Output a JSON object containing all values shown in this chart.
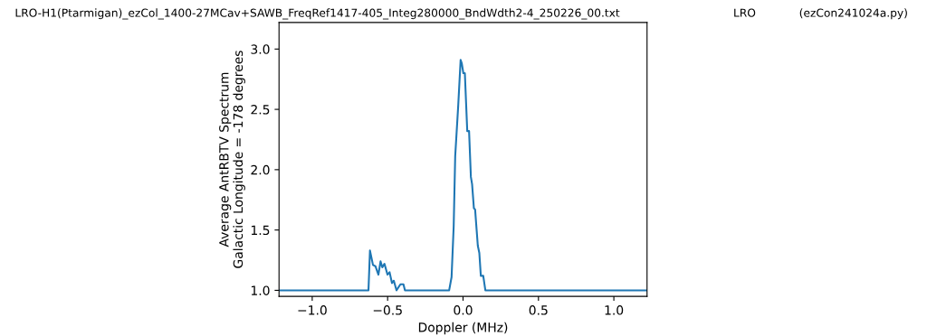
{
  "chart_data": {
    "type": "line",
    "title": "LRO-H1(Ptarmigan)_ezCol_1400-27MCav+SAWB_FreqRef1417-405_Integ280000_BndWdth2-4_250226_00.txt",
    "annotations": [
      "LRO",
      "(ezCon241024a.py)"
    ],
    "xlabel": "Doppler (MHz)",
    "ylabel": "Average AntRBTV Spectrum\nGalactic Longitude = -178 degrees",
    "series": [
      {
        "color": "#1f77b4",
        "x": [
          -1.22,
          -0.627,
          -0.617,
          -0.597,
          -0.581,
          -0.561,
          -0.547,
          -0.535,
          -0.521,
          -0.501,
          -0.487,
          -0.471,
          -0.459,
          -0.441,
          -0.415,
          -0.395,
          -0.385,
          -0.092,
          -0.076,
          -0.062,
          -0.052,
          -0.032,
          -0.016,
          -0.008,
          0.002,
          0.012,
          0.028,
          0.04,
          0.052,
          0.06,
          0.072,
          0.08,
          0.098,
          0.108,
          0.118,
          0.134,
          0.148,
          1.22
        ],
        "values": [
          1.0,
          1.0,
          1.33,
          1.21,
          1.2,
          1.13,
          1.24,
          1.19,
          1.22,
          1.13,
          1.15,
          1.06,
          1.08,
          1.0,
          1.05,
          1.05,
          1.0,
          1.0,
          1.11,
          1.53,
          2.11,
          2.53,
          2.91,
          2.88,
          2.8,
          2.8,
          2.32,
          2.32,
          1.94,
          1.88,
          1.68,
          1.67,
          1.37,
          1.31,
          1.12,
          1.12,
          1.0,
          1.0
        ]
      }
    ],
    "xlim": [
      -1.22,
      1.22
    ],
    "ylim": [
      0.95,
      3.22
    ],
    "xticks": [
      {
        "value": -1.0,
        "label": "−1.0"
      },
      {
        "value": -0.5,
        "label": "−0.5"
      },
      {
        "value": 0.0,
        "label": "0.0"
      },
      {
        "value": 0.5,
        "label": "0.5"
      },
      {
        "value": 1.0,
        "label": "1.0"
      }
    ],
    "yticks": [
      {
        "value": 1.0,
        "label": "1.0"
      },
      {
        "value": 1.5,
        "label": "1.5"
      },
      {
        "value": 2.0,
        "label": "2.0"
      },
      {
        "value": 2.5,
        "label": "2.5"
      },
      {
        "value": 3.0,
        "label": "3.0"
      }
    ],
    "grid": false
  }
}
